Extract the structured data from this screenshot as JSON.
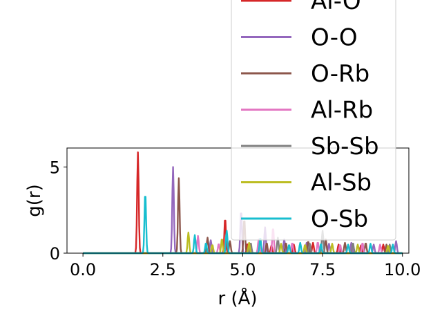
{
  "chart_data": {
    "type": "line",
    "xlabel": "r (Å)",
    "ylabel": "g(r)",
    "xlim": [
      -0.5,
      10.2
    ],
    "ylim": [
      0,
      6.1
    ],
    "x_ticks": [
      0.0,
      2.5,
      5.0,
      7.5,
      10.0
    ],
    "x_tick_labels": [
      "0.0",
      "2.5",
      "5.0",
      "7.5",
      "10.0"
    ],
    "y_ticks": [
      0,
      5
    ],
    "y_tick_labels": [
      "0",
      "5"
    ],
    "grid": false,
    "legend_position": "upper right",
    "series": [
      {
        "name": "Al-O",
        "color": "#d62728",
        "peaks": [
          [
            1.72,
            5.85
          ],
          [
            4.45,
            2.05
          ],
          [
            5.15,
            0.55
          ],
          [
            5.9,
            0.45
          ],
          [
            6.6,
            0.5
          ],
          [
            7.2,
            0.6
          ],
          [
            8.0,
            0.5
          ],
          [
            8.7,
            0.45
          ],
          [
            9.4,
            0.5
          ]
        ]
      },
      {
        "name": "O-O",
        "color": "#9467bd",
        "peaks": [
          [
            2.82,
            5.0
          ],
          [
            4.0,
            0.75
          ],
          [
            4.95,
            2.5
          ],
          [
            5.7,
            1.5
          ],
          [
            6.3,
            0.8
          ],
          [
            7.0,
            0.6
          ],
          [
            7.7,
            0.55
          ],
          [
            8.4,
            0.6
          ],
          [
            9.1,
            0.5
          ],
          [
            9.8,
            0.7
          ]
        ]
      },
      {
        "name": "O-Rb",
        "color": "#8c564b",
        "peaks": [
          [
            3.0,
            4.35
          ],
          [
            3.9,
            0.9
          ],
          [
            4.6,
            0.7
          ],
          [
            5.05,
            2.0
          ],
          [
            5.75,
            0.6
          ],
          [
            6.35,
            0.6
          ],
          [
            7.05,
            0.7
          ],
          [
            7.6,
            0.8
          ],
          [
            8.2,
            0.6
          ],
          [
            8.85,
            0.6
          ],
          [
            9.5,
            0.5
          ]
        ]
      },
      {
        "name": "Al-Rb",
        "color": "#e377c2",
        "peaks": [
          [
            3.6,
            1.0
          ],
          [
            4.25,
            0.55
          ],
          [
            5.5,
            0.8
          ],
          [
            5.95,
            1.5
          ],
          [
            6.55,
            0.6
          ],
          [
            7.35,
            0.65
          ],
          [
            8.05,
            0.5
          ],
          [
            8.75,
            0.6
          ],
          [
            9.3,
            0.5
          ]
        ]
      },
      {
        "name": "Sb-Sb",
        "color": "#7f7f7f",
        "peaks": [
          [
            5.25,
            0.6
          ],
          [
            6.1,
            0.9
          ],
          [
            7.1,
            0.55
          ],
          [
            7.5,
            1.3
          ],
          [
            8.45,
            0.6
          ],
          [
            9.6,
            0.5
          ]
        ]
      },
      {
        "name": "Al-Sb",
        "color": "#bcbd22",
        "peaks": [
          [
            3.3,
            1.2
          ],
          [
            4.05,
            0.5
          ],
          [
            4.35,
            0.85
          ],
          [
            5.2,
            0.6
          ],
          [
            6.2,
            0.55
          ],
          [
            6.95,
            0.5
          ],
          [
            7.8,
            0.55
          ],
          [
            8.6,
            0.5
          ],
          [
            9.55,
            0.45
          ]
        ]
      },
      {
        "name": "O-Sb",
        "color": "#17becf",
        "peaks": [
          [
            1.95,
            3.55
          ],
          [
            3.5,
            1.05
          ],
          [
            3.85,
            0.6
          ],
          [
            4.5,
            1.3
          ],
          [
            5.55,
            0.9
          ],
          [
            6.45,
            0.5
          ],
          [
            6.8,
            0.6
          ],
          [
            7.45,
            0.55
          ],
          [
            8.3,
            0.5
          ],
          [
            9.0,
            0.55
          ],
          [
            9.7,
            0.5
          ]
        ]
      }
    ]
  }
}
